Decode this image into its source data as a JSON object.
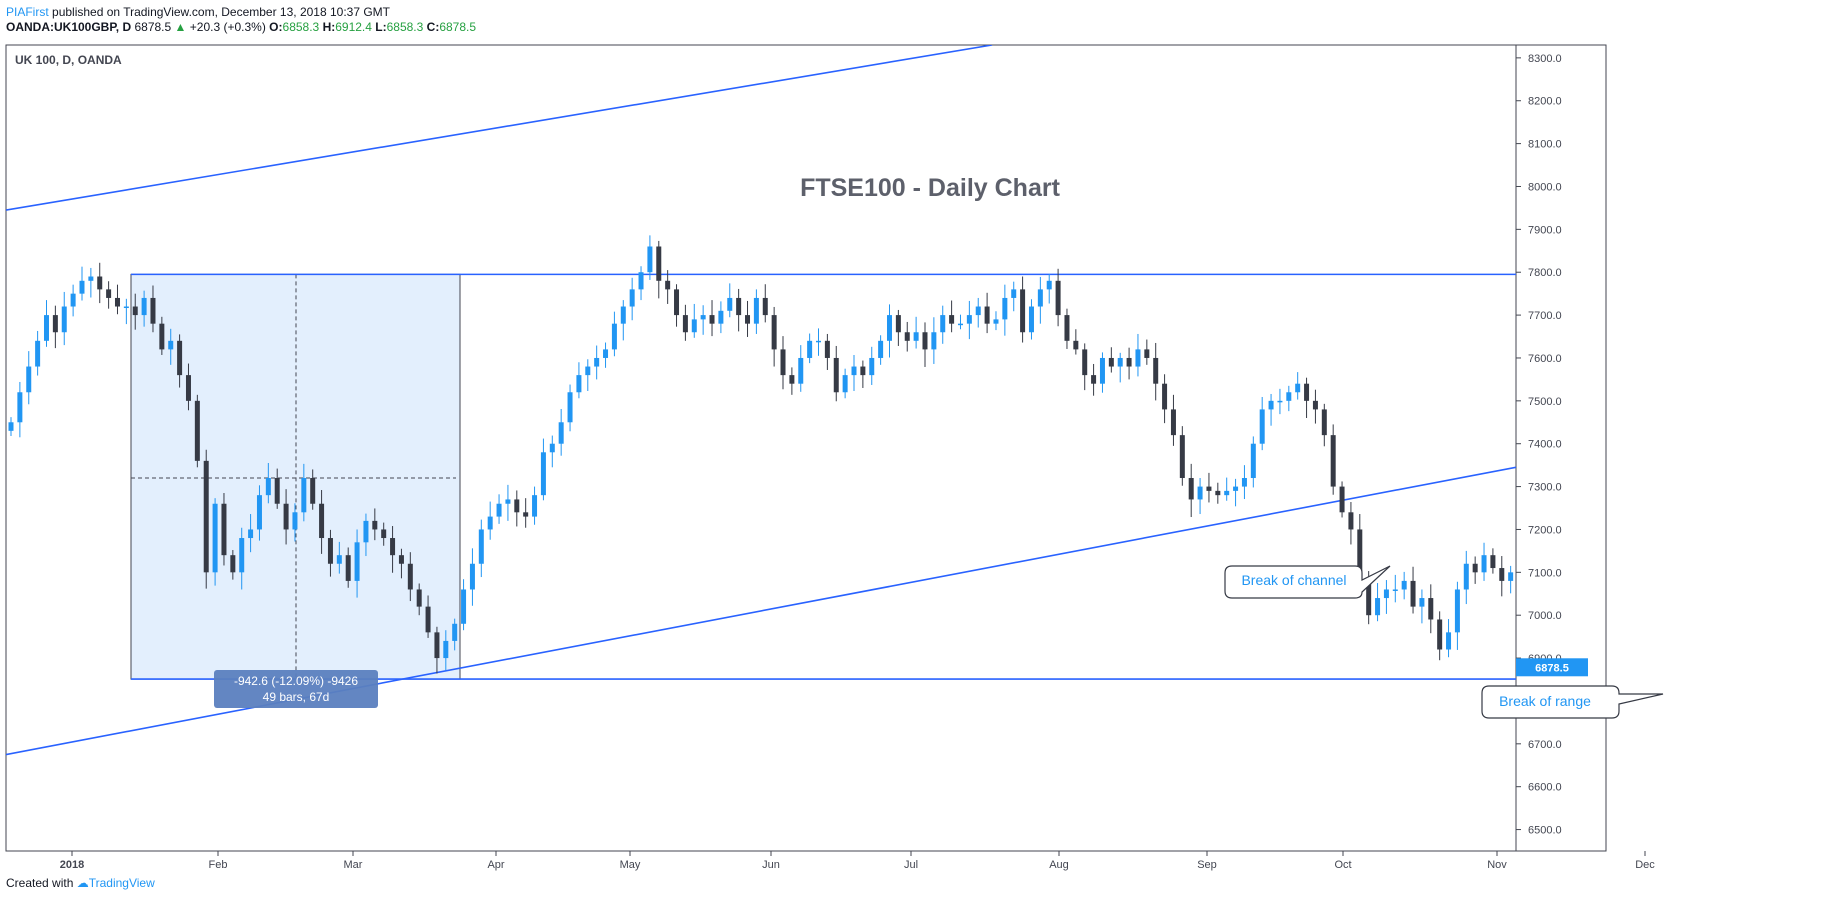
{
  "header": {
    "author": "PIAFirst",
    "published": "published on TradingView.com, December 13, 2018 10:37 GMT",
    "symbol": "OANDA:UK100GBP, D",
    "last": "6878.5",
    "change": "+20.3 (+0.3%)",
    "o_label": "O:",
    "o": "6858.3",
    "h_label": "H:",
    "h": "6912.4",
    "l_label": "L:",
    "l": "6858.3",
    "c_label": "C:",
    "c": "6878.5"
  },
  "footer": {
    "created_with": "Created with",
    "brand": "TradingView"
  },
  "colors": {
    "up": "#2196f3",
    "down": "#363a45",
    "line": "#2962ff",
    "range_fill": "#e3effd",
    "price_tag": "#2196f3"
  },
  "chart_data": {
    "type": "candlestick",
    "symbol_label": "UK 100, D, OANDA",
    "title": "FTSE100 - Daily Chart",
    "ylim": [
      6450,
      8330
    ],
    "y_ticks": [
      "8300.0",
      "8200.0",
      "8100.0",
      "8000.0",
      "7900.0",
      "7800.0",
      "7700.0",
      "7600.0",
      "7500.0",
      "7400.0",
      "7300.0",
      "7200.0",
      "7100.0",
      "7000.0",
      "6900.0",
      "6800.0",
      "6700.0",
      "6600.0",
      "6500.0"
    ],
    "x_ticks": [
      "2018",
      "Feb",
      "Mar",
      "Apr",
      "May",
      "Jun",
      "Jul",
      "Aug",
      "Sep",
      "Oct",
      "Nov",
      "Dec"
    ],
    "last_price": "6878.5",
    "closes": [
      7450,
      7520,
      7580,
      7640,
      7700,
      7660,
      7720,
      7750,
      7780,
      7790,
      7760,
      7740,
      7720,
      7720,
      7700,
      7740,
      7680,
      7620,
      7640,
      7560,
      7500,
      7360,
      7100,
      7260,
      7140,
      7100,
      7180,
      7200,
      7280,
      7320,
      7260,
      7200,
      7240,
      7320,
      7260,
      7180,
      7120,
      7140,
      7080,
      7170,
      7220,
      7200,
      7180,
      7140,
      7120,
      7060,
      7020,
      6960,
      6900,
      6940,
      6980,
      7060,
      7120,
      7200,
      7230,
      7260,
      7270,
      7240,
      7230,
      7280,
      7380,
      7400,
      7450,
      7520,
      7560,
      7580,
      7600,
      7620,
      7680,
      7720,
      7760,
      7800,
      7860,
      7780,
      7760,
      7700,
      7660,
      7690,
      7700,
      7680,
      7710,
      7740,
      7700,
      7680,
      7740,
      7700,
      7620,
      7560,
      7540,
      7600,
      7640,
      7640,
      7600,
      7520,
      7560,
      7580,
      7560,
      7600,
      7640,
      7700,
      7660,
      7640,
      7660,
      7620,
      7660,
      7700,
      7680,
      7680,
      7700,
      7720,
      7680,
      7690,
      7740,
      7760,
      7660,
      7720,
      7760,
      7780,
      7700,
      7640,
      7620,
      7560,
      7540,
      7600,
      7580,
      7600,
      7580,
      7620,
      7600,
      7540,
      7480,
      7420,
      7320,
      7270,
      7300,
      7290,
      7280,
      7290,
      7300,
      7320,
      7400,
      7480,
      7500,
      7500,
      7520,
      7540,
      7500,
      7480,
      7420,
      7300,
      7240,
      7200,
      7080,
      7000,
      7040,
      7060,
      7060,
      7080,
      7020,
      7040,
      6990,
      6920,
      6960,
      7060,
      7120,
      7100,
      7140,
      7110,
      7080,
      7100,
      7140,
      7120,
      7100,
      7060,
      7020,
      7000,
      7060,
      7020,
      6980,
      7040,
      7080,
      7100,
      7040,
      7080,
      6980,
      6920,
      6780,
      6760,
      6840,
      6860,
      6878.5
    ],
    "annotations": [
      "Break of channel",
      "Break of range"
    ],
    "measure_label_1": "-942.6 (-12.09%) -9426",
    "measure_label_2": "49 bars, 67d",
    "levels": {
      "range_top": 7795,
      "range_bottom": 6851
    }
  }
}
